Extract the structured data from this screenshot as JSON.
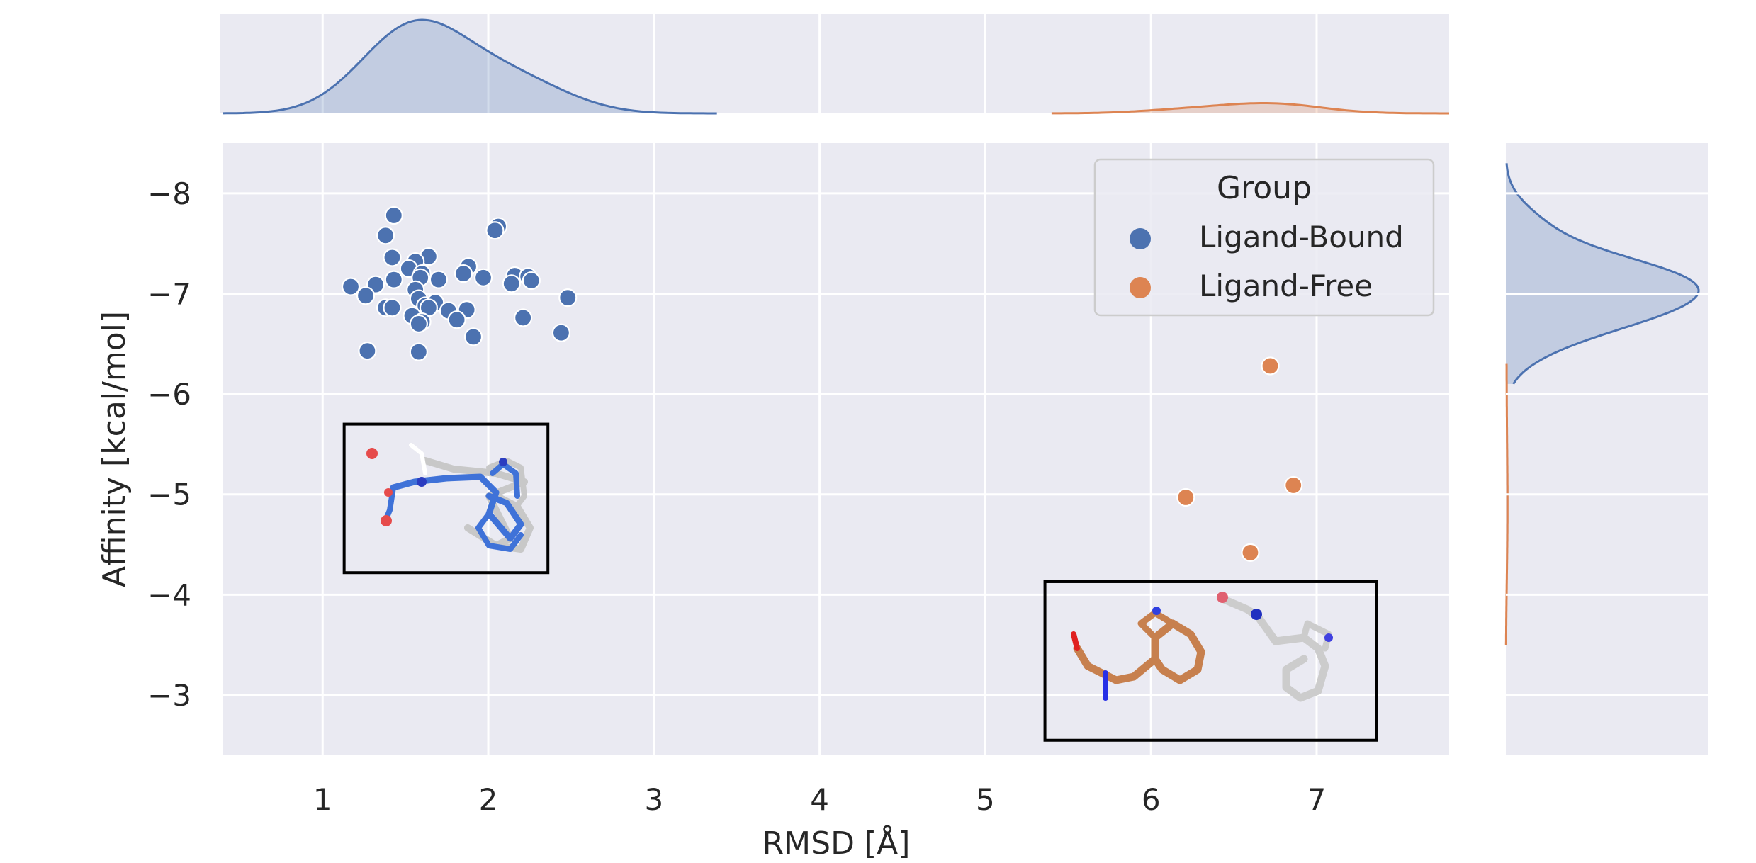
{
  "chart_data": {
    "type": "scatter",
    "kind": "joint plot with marginal density (kde) plots",
    "xlabel": "RMSD [Å]",
    "ylabel": "Affinity [kcal/mol]",
    "xlim": [
      0.4,
      7.8
    ],
    "ylim": [
      -2.4,
      -8.5
    ],
    "y_inverted": true,
    "xticks": [
      1,
      2,
      3,
      4,
      5,
      6,
      7
    ],
    "xtick_labels": [
      "1",
      "2",
      "3",
      "4",
      "5",
      "6",
      "7"
    ],
    "yticks": [
      -8,
      -7,
      -6,
      -5,
      -4,
      -3
    ],
    "ytick_labels": [
      "−8",
      "−7",
      "−6",
      "−5",
      "−4",
      "−3"
    ],
    "grid": true,
    "legend": {
      "title": "Group",
      "placement": "top-right"
    },
    "series": [
      {
        "name": "Ligand-Bound",
        "color": "#4c72b0",
        "points": [
          [
            1.43,
            -7.78
          ],
          [
            2.06,
            -7.67
          ],
          [
            2.04,
            -7.63
          ],
          [
            1.38,
            -7.58
          ],
          [
            1.42,
            -7.36
          ],
          [
            1.64,
            -7.37
          ],
          [
            1.56,
            -7.32
          ],
          [
            1.88,
            -7.27
          ],
          [
            1.52,
            -7.25
          ],
          [
            1.6,
            -7.2
          ],
          [
            1.7,
            -7.14
          ],
          [
            1.97,
            -7.16
          ],
          [
            1.85,
            -7.2
          ],
          [
            1.32,
            -7.09
          ],
          [
            1.43,
            -7.14
          ],
          [
            1.59,
            -7.16
          ],
          [
            2.16,
            -7.18
          ],
          [
            2.24,
            -7.17
          ],
          [
            2.14,
            -7.1
          ],
          [
            2.26,
            -7.13
          ],
          [
            1.17,
            -7.07
          ],
          [
            1.26,
            -6.98
          ],
          [
            1.56,
            -7.04
          ],
          [
            1.58,
            -6.95
          ],
          [
            2.48,
            -6.96
          ],
          [
            1.62,
            -6.88
          ],
          [
            1.68,
            -6.91
          ],
          [
            1.38,
            -6.86
          ],
          [
            1.42,
            -6.86
          ],
          [
            1.64,
            -6.86
          ],
          [
            1.76,
            -6.83
          ],
          [
            1.87,
            -6.84
          ],
          [
            1.54,
            -6.78
          ],
          [
            1.6,
            -6.72
          ],
          [
            1.58,
            -6.7
          ],
          [
            1.81,
            -6.74
          ],
          [
            2.21,
            -6.76
          ],
          [
            1.91,
            -6.57
          ],
          [
            2.44,
            -6.61
          ],
          [
            1.27,
            -6.43
          ],
          [
            1.58,
            -6.42
          ]
        ]
      },
      {
        "name": "Ligand-Free",
        "color": "#dd8452",
        "points": [
          [
            6.72,
            -6.28
          ],
          [
            6.21,
            -4.97
          ],
          [
            6.86,
            -5.09
          ],
          [
            6.6,
            -4.42
          ]
        ]
      }
    ],
    "marginals": {
      "top": "x-distribution kde: Ligand-Bound peak near RMSD 1.55 with shoulder near 2.2; Ligand-Free flat bump near RMSD 6.7",
      "right": "y-distribution kde: Ligand-Bound peak near −7.1; Ligand-Free long flat tail from −6.3 to −3.5"
    },
    "insets": [
      {
        "label": "ligand-bound pose overlay (blue vs grey molecule)",
        "x_range": [
          1.13,
          2.36
        ],
        "y_range": [
          -5.7,
          -4.22
        ]
      },
      {
        "label": "ligand-free pose overlay (orange vs grey molecule)",
        "x_range": [
          5.36,
          7.36
        ],
        "y_range": [
          -4.13,
          -2.55
        ]
      }
    ]
  }
}
